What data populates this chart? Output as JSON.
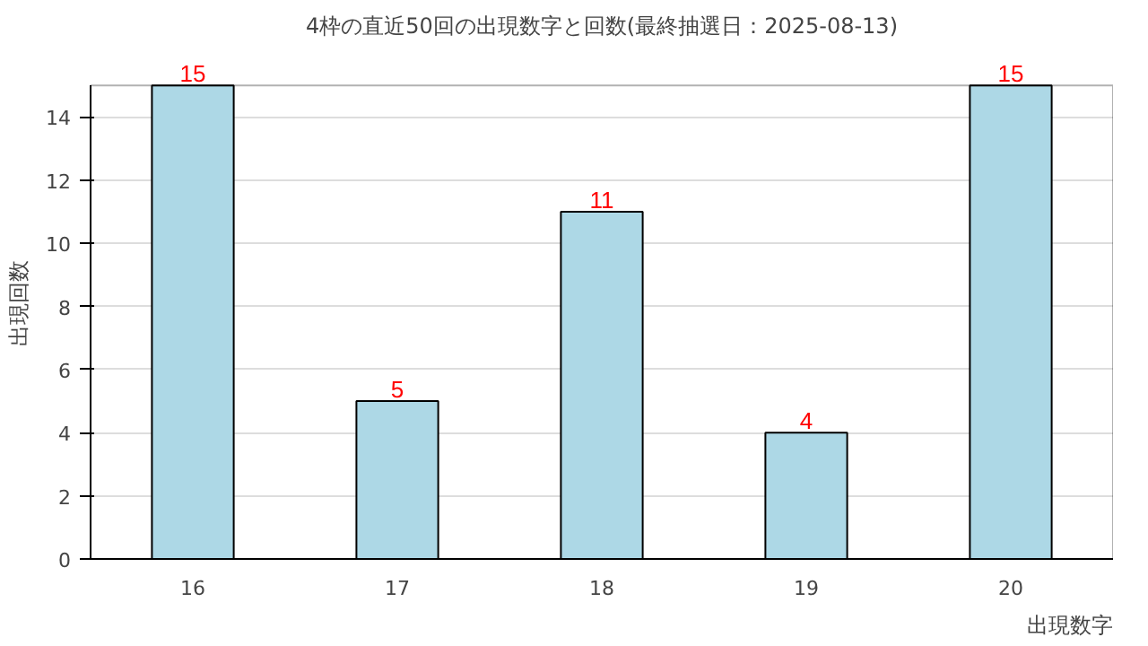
{
  "chart_data": {
    "type": "bar",
    "title": "4枠の直近50回の出現数字と回数(最終抽選日：2025-08-13)",
    "xlabel": "出現数字",
    "ylabel": "出現回数",
    "categories": [
      "16",
      "17",
      "18",
      "19",
      "20"
    ],
    "values": [
      15,
      5,
      11,
      4,
      15
    ],
    "color": "#add8e6",
    "ylim": [
      0,
      15
    ],
    "yticks": [
      0,
      2,
      4,
      6,
      8,
      10,
      12,
      14
    ],
    "grid": "y",
    "data_labels": true
  }
}
